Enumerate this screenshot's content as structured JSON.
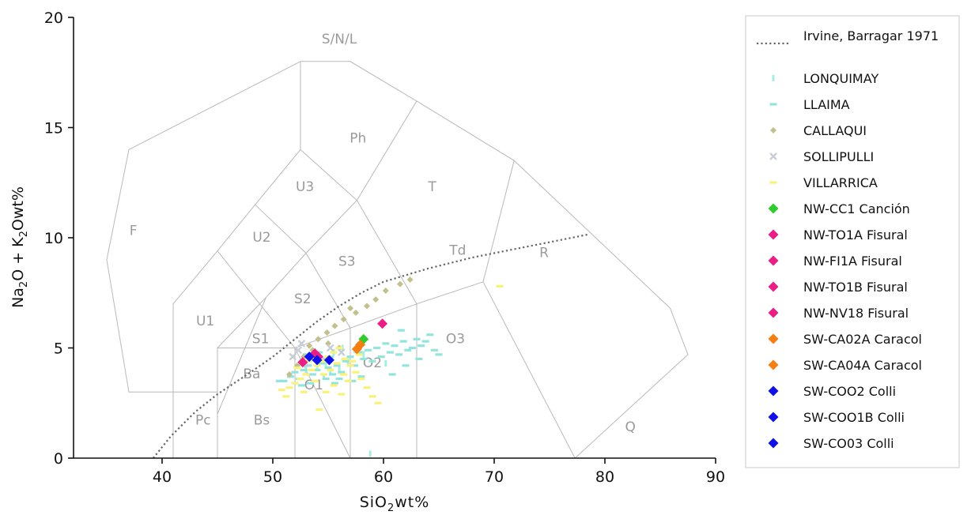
{
  "chart_data": {
    "type": "scatter",
    "title": "",
    "xlabel": {
      "parts": [
        [
          "SiO",
          "normal"
        ],
        [
          "2",
          "sub"
        ],
        [
          "wt%",
          "normal"
        ]
      ]
    },
    "ylabel": {
      "parts": [
        [
          "Na",
          "normal"
        ],
        [
          "2",
          "sub"
        ],
        [
          "O + K",
          "normal"
        ],
        [
          "2",
          "sub"
        ],
        [
          "Owt%",
          "normal"
        ]
      ]
    },
    "xlim": [
      32,
      90
    ],
    "ylim": [
      0,
      20
    ],
    "xticks": [
      40,
      50,
      60,
      70,
      80,
      90
    ],
    "yticks": [
      0,
      5,
      10,
      15,
      20
    ],
    "grid": false,
    "legend_position": "right",
    "tas_fields": {
      "lines": [
        [
          [
            41,
            0
          ],
          [
            41,
            7
          ],
          [
            45,
            9.4
          ],
          [
            48.4,
            11.5
          ],
          [
            52.5,
            14
          ],
          [
            57.6,
            11.7
          ],
          [
            63,
            16.2
          ],
          [
            71.8,
            13.5
          ],
          [
            85.9,
            6.8
          ],
          [
            87.5,
            4.7
          ],
          [
            77.3,
            0
          ]
        ],
        [
          [
            45,
            0
          ],
          [
            45,
            5
          ],
          [
            52,
            5
          ],
          [
            57,
            5.9
          ],
          [
            63,
            7
          ],
          [
            69,
            8
          ],
          [
            77.3,
            0
          ]
        ],
        [
          [
            52,
            0
          ],
          [
            52,
            5
          ],
          [
            57,
            0
          ]
        ],
        [
          [
            57,
            0
          ],
          [
            57,
            5.9
          ]
        ],
        [
          [
            63,
            0
          ],
          [
            63,
            7
          ]
        ],
        [
          [
            41,
            3
          ],
          [
            45,
            3
          ]
        ],
        [
          [
            45,
            2
          ],
          [
            49.4,
            7.3
          ],
          [
            53,
            9.3
          ],
          [
            57.6,
            11.7
          ]
        ],
        [
          [
            45,
            5
          ],
          [
            49.4,
            7.3
          ]
        ],
        [
          [
            52,
            5
          ],
          [
            45,
            9.4
          ]
        ],
        [
          [
            57,
            5.9
          ],
          [
            53,
            9.3
          ],
          [
            48.4,
            11.5
          ]
        ],
        [
          [
            63,
            7
          ],
          [
            57.6,
            11.7
          ]
        ],
        [
          [
            69,
            8
          ],
          [
            71.8,
            13.5
          ]
        ],
        [
          [
            52.5,
            14
          ],
          [
            52.5,
            18
          ],
          [
            57,
            18
          ],
          [
            63,
            16.2
          ]
        ],
        [
          [
            41,
            3
          ],
          [
            37,
            3
          ],
          [
            35,
            9
          ],
          [
            37,
            14
          ],
          [
            52.5,
            18
          ]
        ]
      ],
      "labels": [
        {
          "text": "S/N/L",
          "x": 56,
          "y": 19.0
        },
        {
          "text": "Ph",
          "x": 57.7,
          "y": 14.5
        },
        {
          "text": "T",
          "x": 64.4,
          "y": 12.3
        },
        {
          "text": "U3",
          "x": 52.9,
          "y": 12.3
        },
        {
          "text": "U2",
          "x": 49.0,
          "y": 10.0
        },
        {
          "text": "F",
          "x": 37.4,
          "y": 10.3
        },
        {
          "text": "S3",
          "x": 56.7,
          "y": 8.9
        },
        {
          "text": "Td",
          "x": 66.7,
          "y": 9.4
        },
        {
          "text": "R",
          "x": 74.5,
          "y": 9.3
        },
        {
          "text": "S2",
          "x": 52.7,
          "y": 7.2
        },
        {
          "text": "U1",
          "x": 43.9,
          "y": 6.2
        },
        {
          "text": "S1",
          "x": 48.9,
          "y": 5.4
        },
        {
          "text": "O3",
          "x": 66.5,
          "y": 5.4
        },
        {
          "text": "O2",
          "x": 59.0,
          "y": 4.3
        },
        {
          "text": "Ba",
          "x": 48.1,
          "y": 3.8
        },
        {
          "text": "O1",
          "x": 53.7,
          "y": 3.3
        },
        {
          "text": "Pc",
          "x": 43.7,
          "y": 1.7
        },
        {
          "text": "Bs",
          "x": 49.0,
          "y": 1.7
        },
        {
          "text": "Q",
          "x": 82.3,
          "y": 1.4
        }
      ]
    },
    "alkaline_line": {
      "name": "Irvine, Barragar 1971",
      "color": "#666666",
      "points": [
        [
          39.2,
          0
        ],
        [
          40.8,
          1.0
        ],
        [
          43,
          2.1
        ],
        [
          45,
          2.9
        ],
        [
          48,
          3.9
        ],
        [
          50,
          4.6
        ],
        [
          52,
          5.4
        ],
        [
          54,
          6.2
        ],
        [
          56,
          6.9
        ],
        [
          58,
          7.5
        ],
        [
          60,
          8.0
        ],
        [
          64,
          8.6
        ],
        [
          68,
          9.1
        ],
        [
          72,
          9.5
        ],
        [
          75,
          9.8
        ],
        [
          78.5,
          10.15
        ]
      ]
    },
    "series": [
      {
        "name": "LONQUIMAY",
        "marker": "vbar",
        "color": "#a8ece2",
        "points": [
          [
            53.5,
            4.5
          ],
          [
            54.2,
            4.6
          ],
          [
            54.8,
            4.3
          ],
          [
            55.5,
            4.8
          ],
          [
            56.0,
            4.1
          ],
          [
            55.2,
            3.9
          ],
          [
            54.0,
            4.2
          ],
          [
            53.0,
            4.0
          ],
          [
            56.8,
            4.4
          ],
          [
            57.4,
            4.9
          ],
          [
            58.2,
            4.7
          ],
          [
            60.2,
            4.3
          ],
          [
            54.6,
            3.7
          ],
          [
            56.3,
            5.0
          ],
          [
            58.8,
            0.2
          ]
        ]
      },
      {
        "name": "LLAIMA",
        "marker": "hbar",
        "color": "#93e4dc",
        "points": [
          [
            51.0,
            3.5
          ],
          [
            51.6,
            3.7
          ],
          [
            52.0,
            3.9
          ],
          [
            52.4,
            3.6
          ],
          [
            52.8,
            4.0
          ],
          [
            53.2,
            4.2
          ],
          [
            53.6,
            3.8
          ],
          [
            54.0,
            4.0
          ],
          [
            54.4,
            4.3
          ],
          [
            54.8,
            3.6
          ],
          [
            55.0,
            4.1
          ],
          [
            55.4,
            3.8
          ],
          [
            55.8,
            4.2
          ],
          [
            56.2,
            3.9
          ],
          [
            56.6,
            4.4
          ],
          [
            57.0,
            4.6
          ],
          [
            57.4,
            4.2
          ],
          [
            57.8,
            4.8
          ],
          [
            58.2,
            4.5
          ],
          [
            58.6,
            4.9
          ],
          [
            59.0,
            4.4
          ],
          [
            59.4,
            5.0
          ],
          [
            59.8,
            4.6
          ],
          [
            60.2,
            5.2
          ],
          [
            60.6,
            4.8
          ],
          [
            61.0,
            5.1
          ],
          [
            61.4,
            4.7
          ],
          [
            61.8,
            5.3
          ],
          [
            62.2,
            4.9
          ],
          [
            62.6,
            5.0
          ],
          [
            63.0,
            5.4
          ],
          [
            63.4,
            5.1
          ],
          [
            63.8,
            5.3
          ],
          [
            64.2,
            5.6
          ],
          [
            64.6,
            4.9
          ],
          [
            53.4,
            3.4
          ],
          [
            52.6,
            3.3
          ],
          [
            55.6,
            3.4
          ],
          [
            50.6,
            3.5
          ],
          [
            60.8,
            3.8
          ],
          [
            58.0,
            3.7
          ],
          [
            57.2,
            3.5
          ],
          [
            56.0,
            3.6
          ],
          [
            62.0,
            4.2
          ],
          [
            63.2,
            4.5
          ],
          [
            65.0,
            4.7
          ],
          [
            54.2,
            4.8
          ],
          [
            55.2,
            4.6
          ],
          [
            53.0,
            4.7
          ],
          [
            61.6,
            5.8
          ]
        ]
      },
      {
        "name": "CALLAQUI",
        "marker": "diamond-small",
        "color": "#c2c08c",
        "points": [
          [
            51.5,
            3.8
          ],
          [
            52.2,
            4.2
          ],
          [
            52.8,
            4.6
          ],
          [
            53.3,
            5.1
          ],
          [
            54.1,
            5.4
          ],
          [
            54.9,
            5.7
          ],
          [
            55.6,
            6.0
          ],
          [
            56.4,
            6.3
          ],
          [
            57.5,
            6.6
          ],
          [
            58.5,
            6.9
          ],
          [
            59.3,
            7.2
          ],
          [
            60.2,
            7.6
          ],
          [
            61.5,
            7.9
          ],
          [
            62.4,
            8.1
          ],
          [
            57.0,
            6.8
          ],
          [
            55.0,
            5.2
          ],
          [
            56.0,
            5.0
          ],
          [
            53.6,
            4.9
          ]
        ]
      },
      {
        "name": "SOLLIPULLI",
        "marker": "x",
        "color": "#c8ced6",
        "points": [
          [
            51.8,
            4.6
          ],
          [
            52.3,
            4.9
          ],
          [
            53.0,
            4.3
          ],
          [
            53.8,
            4.7
          ],
          [
            54.6,
            4.5
          ],
          [
            55.2,
            5.0
          ],
          [
            56.2,
            4.8
          ],
          [
            52.6,
            5.2
          ]
        ]
      },
      {
        "name": "VILLARRICA",
        "marker": "hbar",
        "color": "#f8f27a",
        "points": [
          [
            51.5,
            3.2
          ],
          [
            52.0,
            3.4
          ],
          [
            52.5,
            3.6
          ],
          [
            53.0,
            3.8
          ],
          [
            53.5,
            4.0
          ],
          [
            54.0,
            4.2
          ],
          [
            54.5,
            4.4
          ],
          [
            55.0,
            4.6
          ],
          [
            55.5,
            4.8
          ],
          [
            56.0,
            5.0
          ],
          [
            56.5,
            4.5
          ],
          [
            57.0,
            4.2
          ],
          [
            57.5,
            3.9
          ],
          [
            58.0,
            3.6
          ],
          [
            58.5,
            3.2
          ],
          [
            59.0,
            2.8
          ],
          [
            59.5,
            2.5
          ],
          [
            56.2,
            2.9
          ],
          [
            55.5,
            3.3
          ],
          [
            54.8,
            3.0
          ],
          [
            53.8,
            3.5
          ],
          [
            52.8,
            3.0
          ],
          [
            51.2,
            2.8
          ],
          [
            50.8,
            3.1
          ],
          [
            54.2,
            2.2
          ],
          [
            56.8,
            3.5
          ],
          [
            57.8,
            4.7
          ],
          [
            55.8,
            4.3
          ],
          [
            53.2,
            4.4
          ],
          [
            52.2,
            4.1
          ],
          [
            54.6,
            3.8
          ],
          [
            55.2,
            4.0
          ],
          [
            56.4,
            3.8
          ],
          [
            57.2,
            4.4
          ],
          [
            70.5,
            7.8
          ]
        ]
      },
      {
        "name": "NW-CC1 Canción",
        "marker": "diamond",
        "color": "#2fcc2f",
        "points": [
          [
            58.2,
            5.4
          ]
        ]
      },
      {
        "name": "NW-TO1A Fisural",
        "marker": "diamond",
        "color": "#ea1e85",
        "points": [
          [
            59.9,
            6.1
          ]
        ]
      },
      {
        "name": "NW-FI1A Fisural",
        "marker": "diamond",
        "color": "#ea1e85",
        "points": [
          [
            52.7,
            4.35
          ]
        ]
      },
      {
        "name": "NW-TO1B Fisural",
        "marker": "diamond",
        "color": "#ea1e85",
        "points": [
          [
            54.1,
            4.6
          ]
        ]
      },
      {
        "name": "NW-NV18 Fisural",
        "marker": "diamond",
        "color": "#ea1e85",
        "points": [
          [
            53.8,
            4.75
          ]
        ]
      },
      {
        "name": "SW-CA02A Caracol",
        "marker": "diamond",
        "color": "#f77e12",
        "points": [
          [
            57.6,
            4.95
          ]
        ]
      },
      {
        "name": "SW-CA04A Caracol",
        "marker": "diamond",
        "color": "#f77e12",
        "points": [
          [
            57.9,
            5.15
          ]
        ]
      },
      {
        "name": "SW-COO2 Colli",
        "marker": "diamond",
        "color": "#1010e8",
        "points": [
          [
            53.3,
            4.6
          ]
        ]
      },
      {
        "name": "SW-COO1B Colli",
        "marker": "diamond",
        "color": "#1010e8",
        "points": [
          [
            54.0,
            4.45
          ]
        ]
      },
      {
        "name": "SW-CO03 Colli",
        "marker": "diamond",
        "color": "#1010e8",
        "points": [
          [
            55.1,
            4.45
          ]
        ]
      }
    ]
  }
}
